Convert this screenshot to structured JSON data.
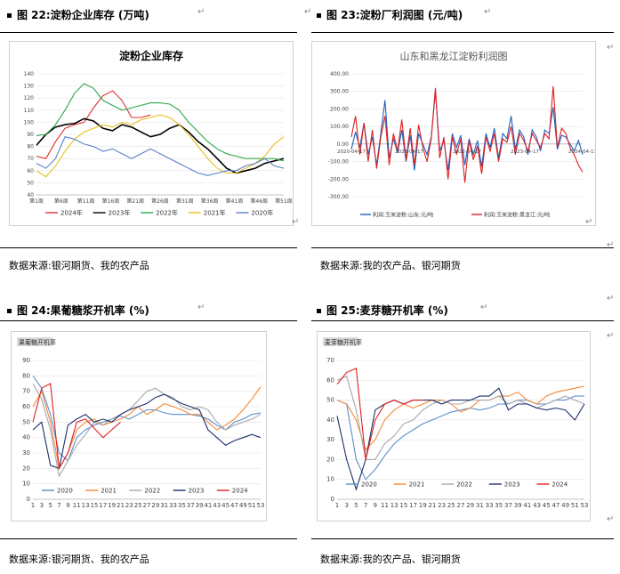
{
  "figures": [
    {
      "title": "图 22:淀粉企业库存 (万吨)",
      "source": "数据来源:银河期货、我的农产品",
      "chart_data": {
        "type": "line",
        "title": "淀粉企业库存",
        "ylim": [
          40,
          140
        ],
        "yticks": [
          "140",
          "130",
          "120",
          "110",
          "100",
          "90",
          "80",
          "70",
          "60",
          "50",
          "40"
        ],
        "xticks": [
          "第1周",
          "第6周",
          "第11周",
          "第16周",
          "第21周",
          "第26周",
          "第31周",
          "第36周",
          "第41周",
          "第46周",
          "第51周"
        ],
        "x": [
          1,
          3,
          5,
          7,
          9,
          11,
          13,
          15,
          17,
          19,
          21,
          23,
          25,
          27,
          29,
          31,
          33,
          35,
          37,
          39,
          41,
          43,
          45,
          47,
          49,
          51,
          52
        ],
        "grid": true,
        "legend_position": "bottom",
        "series": [
          {
            "name": "2024年",
            "color": "#e03030",
            "values": [
              72,
              70,
              84,
              95,
              98,
              100,
              112,
              122,
              126,
              118,
              104,
              104,
              106,
              null,
              null,
              null,
              null,
              null,
              null,
              null,
              null,
              null,
              null,
              null,
              null,
              null,
              null
            ]
          },
          {
            "name": "2023年",
            "color": "#000000",
            "values": [
              81,
              90,
              96,
              98,
              99,
              103,
              101,
              95,
              93,
              98,
              96,
              92,
              88,
              90,
              95,
              98,
              92,
              84,
              78,
              70,
              62,
              58,
              60,
              62,
              66,
              68,
              70
            ]
          },
          {
            "name": "2022年",
            "color": "#2ea84a",
            "values": [
              89,
              90,
              98,
              110,
              124,
              132,
              128,
              118,
              114,
              110,
              112,
              114,
              116,
              116,
              115,
              110,
              100,
              92,
              84,
              78,
              74,
              72,
              70,
              70,
              70,
              70,
              68
            ]
          },
          {
            "name": "2021年",
            "color": "#e8c020",
            "values": [
              60,
              55,
              64,
              76,
              86,
              92,
              95,
              98,
              96,
              100,
              98,
              102,
              104,
              106,
              104,
              98,
              90,
              80,
              70,
              62,
              58,
              58,
              62,
              66,
              72,
              82,
              88
            ]
          },
          {
            "name": "2020年",
            "color": "#5b7fc8",
            "values": [
              66,
              62,
              70,
              88,
              86,
              82,
              80,
              76,
              78,
              74,
              70,
              74,
              78,
              74,
              70,
              66,
              62,
              58,
              56,
              58,
              60,
              60,
              64,
              66,
              70,
              64,
              62
            ]
          }
        ]
      }
    },
    {
      "title": "图 23:淀粉厂利润图 (元/吨)",
      "source": "数据来源:我的农产品、银河期货",
      "chart_data": {
        "type": "line",
        "title": "山东和黑龙江淀粉利润图",
        "ylim": [
          -300,
          400
        ],
        "yticks": [
          "400.00",
          "300.00",
          "200.00",
          "100.00",
          "0.00",
          "-100.00",
          "-200.00",
          "-300.00"
        ],
        "xticks": [
          "2020-04-17",
          "2021-04-17",
          "2022-04-17",
          "2023-04-17",
          "2024-04-17"
        ],
        "grid": true,
        "legend_position": "bottom",
        "series": [
          {
            "name": "利润:玉米淀粉:山东:元/吨",
            "color": "#2060c0",
            "values": [
              -30,
              70,
              -20,
              120,
              -60,
              40,
              -120,
              60,
              250,
              -80,
              30,
              -50,
              80,
              -100,
              50,
              -150,
              60,
              0,
              -60,
              40,
              300,
              -40,
              20,
              -150,
              60,
              -20,
              50,
              -120,
              30,
              -60,
              20,
              -130,
              60,
              -20,
              90,
              -80,
              60,
              30,
              160,
              -30,
              80,
              40,
              -60,
              80,
              40,
              -40,
              80,
              60,
              210,
              -30,
              50,
              40,
              0,
              -40,
              20,
              -60
            ]
          },
          {
            "name": "利润:玉米淀粉:黑龙江:元/吨",
            "color": "#e02020",
            "values": [
              40,
              160,
              -60,
              120,
              -100,
              80,
              -140,
              40,
              160,
              -120,
              60,
              -40,
              140,
              -90,
              90,
              -120,
              110,
              -20,
              -100,
              30,
              320,
              -80,
              40,
              -200,
              40,
              -60,
              30,
              -220,
              20,
              -90,
              -10,
              -170,
              40,
              -40,
              60,
              -100,
              30,
              10,
              100,
              -60,
              60,
              20,
              -40,
              60,
              20,
              -20,
              60,
              30,
              330,
              -20,
              90,
              60,
              -20,
              -60,
              -120,
              -160
            ]
          }
        ]
      }
    },
    {
      "title": "图 24:果葡糖浆开机率 (%)",
      "source": "数据来源:银河期货、我的农产品",
      "chart_data": {
        "type": "line",
        "title": "果葡糖开机率",
        "ylim": [
          0,
          90
        ],
        "yticks": [
          "90",
          "80",
          "70",
          "60",
          "50",
          "40",
          "30",
          "20",
          "10",
          "0"
        ],
        "xticks": [
          "1",
          "3",
          "5",
          "7",
          "9",
          "11",
          "13",
          "15",
          "17",
          "19",
          "21",
          "23",
          "25",
          "27",
          "29",
          "31",
          "33",
          "35",
          "37",
          "39",
          "41",
          "43",
          "45",
          "47",
          "49",
          "51",
          "53"
        ],
        "x": [
          1,
          3,
          5,
          7,
          9,
          11,
          13,
          15,
          17,
          19,
          21,
          23,
          25,
          27,
          29,
          31,
          33,
          35,
          37,
          39,
          41,
          43,
          45,
          47,
          49,
          51,
          53
        ],
        "grid": true,
        "legend_position": "bottom",
        "series": [
          {
            "name": "2020",
            "color": "#5b8fd0",
            "values": [
              80,
              72,
              55,
              30,
              25,
              40,
              45,
              48,
              50,
              52,
              54,
              52,
              55,
              58,
              58,
              56,
              55,
              55,
              55,
              54,
              52,
              48,
              45,
              50,
              52,
              55,
              56
            ]
          },
          {
            "name": "2021",
            "color": "#ef8a3a",
            "values": [
              60,
              70,
              50,
              20,
              30,
              45,
              50,
              52,
              48,
              50,
              52,
              55,
              60,
              55,
              58,
              62,
              60,
              58,
              55,
              55,
              50,
              45,
              48,
              52,
              58,
              65,
              73
            ]
          },
          {
            "name": "2022",
            "color": "#a8a8a8",
            "values": [
              75,
              65,
              45,
              15,
              25,
              35,
              42,
              50,
              48,
              52,
              55,
              58,
              64,
              70,
              72,
              68,
              66,
              60,
              58,
              60,
              58,
              50,
              45,
              48,
              50,
              52,
              55
            ]
          },
          {
            "name": "2023",
            "color": "#1a2f6a",
            "values": [
              45,
              50,
              22,
              20,
              48,
              52,
              55,
              50,
              52,
              50,
              55,
              58,
              60,
              62,
              66,
              68,
              65,
              62,
              60,
              58,
              45,
              40,
              35,
              38,
              40,
              42,
              40
            ]
          },
          {
            "name": "2024",
            "color": "#e02020",
            "values": [
              50,
              72,
              75,
              20,
              30,
              50,
              52,
              46,
              40,
              45,
              50,
              null,
              null,
              null,
              null,
              null,
              null,
              null,
              null,
              null,
              null,
              null,
              null,
              null,
              null,
              null,
              null
            ]
          }
        ]
      }
    },
    {
      "title": "图 25:麦芽糖开机率 (%)",
      "source": "数据来源:我的农产品、银河期货",
      "chart_data": {
        "type": "line",
        "title": "麦芽糖开机率",
        "ylim": [
          0,
          70
        ],
        "yticks": [
          "70",
          "60",
          "50",
          "40",
          "30",
          "20",
          "10",
          "0"
        ],
        "xticks": [
          "1",
          "3",
          "5",
          "7",
          "9",
          "11",
          "13",
          "15",
          "17",
          "19",
          "21",
          "23",
          "25",
          "27",
          "29",
          "31",
          "33",
          "35",
          "37",
          "39",
          "41",
          "43",
          "45",
          "47",
          "49",
          "51",
          "53"
        ],
        "x": [
          1,
          3,
          5,
          7,
          9,
          11,
          13,
          15,
          17,
          19,
          21,
          23,
          25,
          27,
          29,
          31,
          33,
          35,
          37,
          39,
          41,
          43,
          45,
          47,
          49,
          51,
          53
        ],
        "grid": true,
        "legend_position": "bottom",
        "series": [
          {
            "name": "2020",
            "color": "#5b8fd0",
            "values": [
              50,
              48,
              20,
              10,
              15,
              22,
              28,
              32,
              35,
              38,
              40,
              42,
              44,
              45,
              46,
              45,
              46,
              48,
              48,
              50,
              50,
              48,
              48,
              50,
              50,
              52,
              52
            ]
          },
          {
            "name": "2021",
            "color": "#ef8a3a",
            "values": [
              50,
              48,
              40,
              25,
              30,
              40,
              45,
              48,
              46,
              48,
              50,
              50,
              48,
              44,
              46,
              50,
              50,
              52,
              52,
              54,
              50,
              48,
              52,
              54,
              55,
              56,
              57
            ]
          },
          {
            "name": "2022",
            "color": "#a8a8a8",
            "values": [
              60,
              62,
              45,
              20,
              20,
              28,
              32,
              38,
              40,
              45,
              48,
              50,
              48,
              48,
              50,
              50,
              50,
              52,
              48,
              50,
              48,
              46,
              48,
              50,
              52,
              50,
              48
            ]
          },
          {
            "name": "2023",
            "color": "#1a2f6a",
            "values": [
              42,
              20,
              5,
              20,
              45,
              48,
              50,
              48,
              50,
              50,
              50,
              48,
              50,
              50,
              50,
              52,
              52,
              56,
              45,
              48,
              48,
              46,
              45,
              46,
              45,
              40,
              48
            ]
          },
          {
            "name": "2024",
            "color": "#e02020",
            "values": [
              58,
              64,
              66,
              20,
              40,
              48,
              50,
              48,
              50,
              50,
              null,
              null,
              null,
              null,
              null,
              null,
              null,
              null,
              null,
              null,
              null,
              null,
              null,
              null,
              null,
              null,
              null
            ]
          }
        ]
      }
    }
  ]
}
